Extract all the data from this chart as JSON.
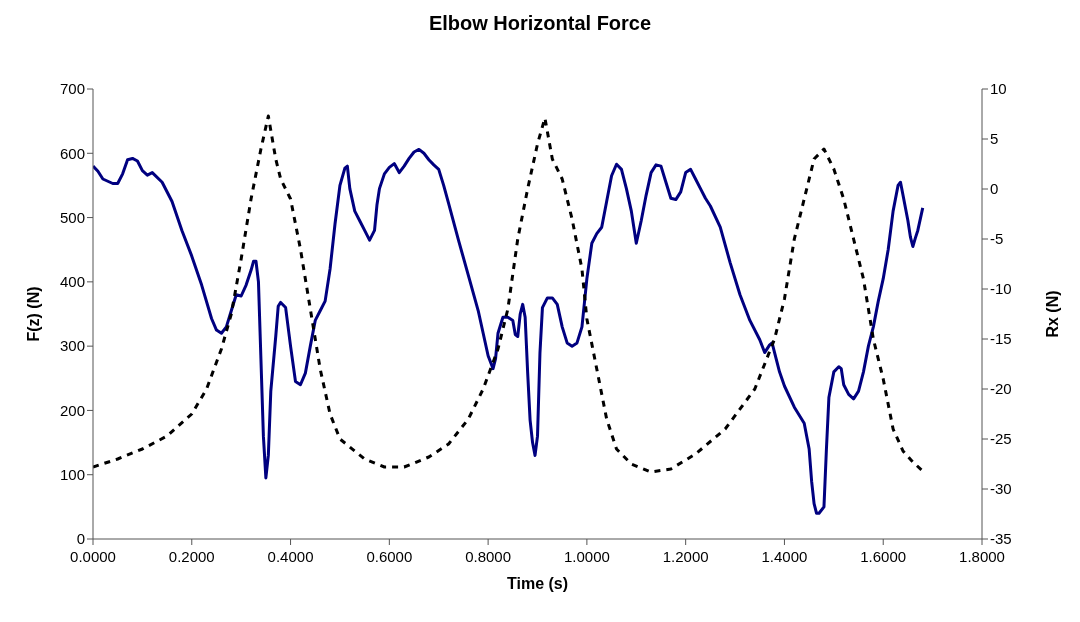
{
  "chart_data": {
    "type": "line",
    "title": "Elbow Horizontal Force",
    "xlabel": "Time (s)",
    "ylabel": "F(z) (N)",
    "y2label": "Rx (N)",
    "xlim": [
      0,
      1.8
    ],
    "xticks": [
      {
        "value": 0,
        "label": "0.0000"
      },
      {
        "value": 0.2,
        "label": "0.2000"
      },
      {
        "value": 0.4,
        "label": "0.4000"
      },
      {
        "value": 0.6,
        "label": "0.6000"
      },
      {
        "value": 0.8,
        "label": "0.8000"
      },
      {
        "value": 1.0,
        "label": "1.0000"
      },
      {
        "value": 1.2,
        "label": "1.2000"
      },
      {
        "value": 1.4,
        "label": "1.4000"
      },
      {
        "value": 1.6,
        "label": "1.6000"
      },
      {
        "value": 1.8,
        "label": "1.8000"
      }
    ],
    "ylim": [
      0,
      700
    ],
    "yticks": [
      0,
      100,
      200,
      300,
      400,
      500,
      600,
      700
    ],
    "y2lim": [
      -35,
      10
    ],
    "y2ticks": [
      -35,
      -30,
      -25,
      -20,
      -15,
      -10,
      -5,
      0,
      5,
      10
    ],
    "marker": "none",
    "series": [
      {
        "color": "#000080",
        "line_style": "solid",
        "x": [
          0,
          0.01,
          0.02,
          0.04,
          0.05,
          0.06,
          0.07,
          0.08,
          0.09,
          0.1,
          0.11,
          0.12,
          0.14,
          0.16,
          0.18,
          0.2,
          0.22,
          0.24,
          0.25,
          0.26,
          0.27,
          0.28,
          0.29,
          0.3,
          0.31,
          0.32,
          0.325,
          0.33,
          0.335,
          0.34,
          0.345,
          0.35,
          0.355,
          0.36,
          0.37,
          0.375,
          0.38,
          0.39,
          0.4,
          0.41,
          0.42,
          0.43,
          0.44,
          0.45,
          0.46,
          0.47,
          0.48,
          0.49,
          0.5,
          0.51,
          0.515,
          0.52,
          0.53,
          0.54,
          0.55,
          0.56,
          0.57,
          0.575,
          0.58,
          0.59,
          0.6,
          0.61,
          0.62,
          0.63,
          0.64,
          0.65,
          0.66,
          0.67,
          0.68,
          0.69,
          0.7,
          0.71,
          0.72,
          0.74,
          0.76,
          0.78,
          0.79,
          0.8,
          0.81,
          0.815,
          0.82,
          0.83,
          0.84,
          0.85,
          0.855,
          0.86,
          0.865,
          0.87,
          0.875,
          0.88,
          0.885,
          0.89,
          0.895,
          0.9,
          0.905,
          0.91,
          0.92,
          0.93,
          0.94,
          0.95,
          0.96,
          0.97,
          0.98,
          0.99,
          1.0,
          1.01,
          1.02,
          1.03,
          1.04,
          1.05,
          1.06,
          1.07,
          1.08,
          1.09,
          1.1,
          1.11,
          1.12,
          1.13,
          1.14,
          1.15,
          1.16,
          1.17,
          1.18,
          1.19,
          1.2,
          1.21,
          1.22,
          1.23,
          1.24,
          1.25,
          1.27,
          1.29,
          1.31,
          1.33,
          1.35,
          1.36,
          1.37,
          1.375,
          1.38,
          1.39,
          1.4,
          1.42,
          1.44,
          1.45,
          1.455,
          1.46,
          1.465,
          1.47,
          1.48,
          1.485,
          1.49,
          1.5,
          1.51,
          1.515,
          1.52,
          1.53,
          1.54,
          1.55,
          1.56,
          1.57,
          1.58,
          1.59,
          1.6,
          1.61,
          1.62,
          1.63,
          1.635,
          1.64,
          1.65,
          1.655,
          1.66,
          1.665,
          1.67,
          1.68
        ],
        "values": [
          580,
          572,
          560,
          553,
          553,
          568,
          590,
          592,
          588,
          573,
          566,
          570,
          555,
          525,
          480,
          440,
          395,
          343,
          325,
          320,
          330,
          355,
          380,
          378,
          395,
          418,
          432,
          432,
          400,
          280,
          160,
          95,
          130,
          230,
          315,
          362,
          368,
          360,
          300,
          245,
          240,
          258,
          300,
          340,
          355,
          370,
          420,
          490,
          550,
          577,
          580,
          545,
          510,
          495,
          480,
          465,
          480,
          520,
          545,
          568,
          578,
          584,
          570,
          580,
          592,
          602,
          606,
          600,
          590,
          582,
          575,
          550,
          522,
          465,
          410,
          355,
          320,
          285,
          265,
          280,
          320,
          345,
          345,
          340,
          318,
          315,
          350,
          365,
          345,
          260,
          185,
          150,
          130,
          160,
          290,
          360,
          375,
          375,
          365,
          330,
          305,
          300,
          305,
          330,
          405,
          460,
          475,
          485,
          525,
          565,
          583,
          575,
          545,
          510,
          460,
          495,
          535,
          570,
          582,
          580,
          555,
          530,
          528,
          540,
          570,
          575,
          560,
          545,
          530,
          518,
          485,
          430,
          380,
          340,
          310,
          290,
          302,
          305,
          290,
          260,
          238,
          205,
          180,
          140,
          90,
          55,
          40,
          40,
          50,
          140,
          220,
          260,
          268,
          265,
          240,
          225,
          218,
          230,
          260,
          300,
          330,
          370,
          405,
          450,
          510,
          550,
          555,
          535,
          495,
          470,
          455,
          468,
          480,
          515
        ]
      },
      {
        "color": "#000000",
        "line_style": "dashed",
        "axis": "y2",
        "x": [
          0,
          0.05,
          0.1,
          0.15,
          0.2,
          0.23,
          0.26,
          0.28,
          0.3,
          0.32,
          0.34,
          0.355,
          0.37,
          0.38,
          0.4,
          0.42,
          0.44,
          0.46,
          0.48,
          0.5,
          0.55,
          0.59,
          0.63,
          0.68,
          0.72,
          0.76,
          0.79,
          0.82,
          0.84,
          0.86,
          0.88,
          0.9,
          0.915,
          0.93,
          0.95,
          0.97,
          0.99,
          1.0,
          1.02,
          1.04,
          1.06,
          1.09,
          1.13,
          1.17,
          1.22,
          1.28,
          1.34,
          1.38,
          1.4,
          1.42,
          1.44,
          1.46,
          1.48,
          1.5,
          1.52,
          1.54,
          1.56,
          1.58,
          1.6,
          1.62,
          1.64,
          1.66,
          1.68
        ],
        "values": [
          -27.8,
          -27,
          -26,
          -24.7,
          -22.5,
          -20,
          -16,
          -12.5,
          -7,
          -1,
          4,
          7.3,
          3,
          1,
          -1,
          -6,
          -12,
          -18,
          -22.5,
          -25,
          -27,
          -27.8,
          -27.8,
          -26.8,
          -25.5,
          -23,
          -20,
          -16,
          -12,
          -5,
          0,
          4.5,
          7.1,
          3,
          1,
          -3,
          -8,
          -13,
          -18,
          -23,
          -26,
          -27.5,
          -28.3,
          -28,
          -26.5,
          -24,
          -20,
          -15,
          -11,
          -5,
          -1,
          3,
          4,
          2,
          -1,
          -5,
          -9,
          -15,
          -19,
          -24,
          -26.2,
          -27.3,
          -28.2
        ]
      }
    ]
  }
}
